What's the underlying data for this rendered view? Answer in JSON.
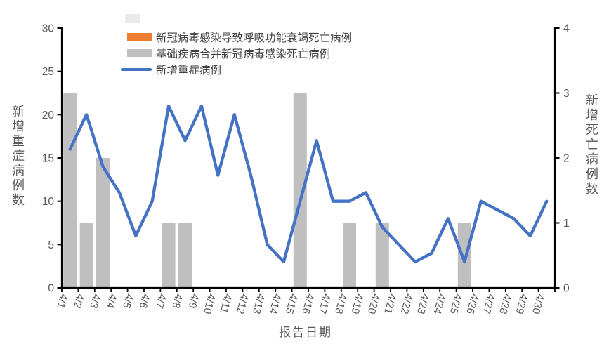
{
  "chart_data": {
    "type": "combo",
    "categories": [
      "4/1",
      "4/2",
      "4/3",
      "4/4",
      "4/5",
      "4/6",
      "4/7",
      "4/8",
      "4/9",
      "4/10",
      "4/11",
      "4/12",
      "4/13",
      "4/14",
      "4/15",
      "4/16",
      "4/17",
      "4/18",
      "4/19",
      "4/20",
      "4/21",
      "4/22",
      "4/23",
      "4/24",
      "4/25",
      "4/26",
      "4/27",
      "4/28",
      "4/29",
      "4/30"
    ],
    "series": [
      {
        "name": "新冠病毒感染导致呼吸功能衰竭死亡病例",
        "type": "bar",
        "axis": "right",
        "color": "#ED7D31",
        "values": [
          0,
          0,
          0,
          0,
          0,
          0,
          0,
          0,
          0,
          0,
          0,
          0,
          0,
          0,
          0,
          0,
          0,
          0,
          0,
          0,
          0,
          0,
          0,
          0,
          0,
          0,
          0,
          0,
          0,
          0
        ]
      },
      {
        "name": "基础疾病合并新冠病毒感染死亡病例",
        "type": "bar",
        "axis": "right",
        "color": "#BFBFBF",
        "values": [
          3,
          1,
          2,
          0,
          0,
          0,
          1,
          1,
          0,
          0,
          0,
          0,
          0,
          0,
          3,
          0,
          0,
          1,
          0,
          1,
          0,
          0,
          0,
          0,
          1,
          0,
          0,
          0,
          0,
          0
        ]
      },
      {
        "name": "新增重症病例",
        "type": "line",
        "axis": "left",
        "color": "#4472C4",
        "values": [
          16,
          20,
          14,
          11,
          6,
          10,
          21,
          17,
          21,
          13,
          20,
          13,
          5,
          3,
          10,
          17,
          10,
          10,
          11,
          7,
          5,
          3,
          4,
          8,
          3,
          10,
          9,
          8,
          6,
          10
        ]
      }
    ],
    "left_axis": {
      "label": "新增重症病例数",
      "min": 0,
      "max": 30,
      "ticks": [
        0,
        5,
        10,
        15,
        20,
        25,
        30
      ]
    },
    "right_axis": {
      "label": "新增死亡病例数",
      "min": 0,
      "max": 4,
      "ticks": [
        0,
        1,
        2,
        3,
        4
      ]
    },
    "xlabel": "报告日期",
    "grid": "off",
    "legend_position": "top-left-inside",
    "axis_color": "#000000",
    "tick_label_color": "#595959"
  }
}
